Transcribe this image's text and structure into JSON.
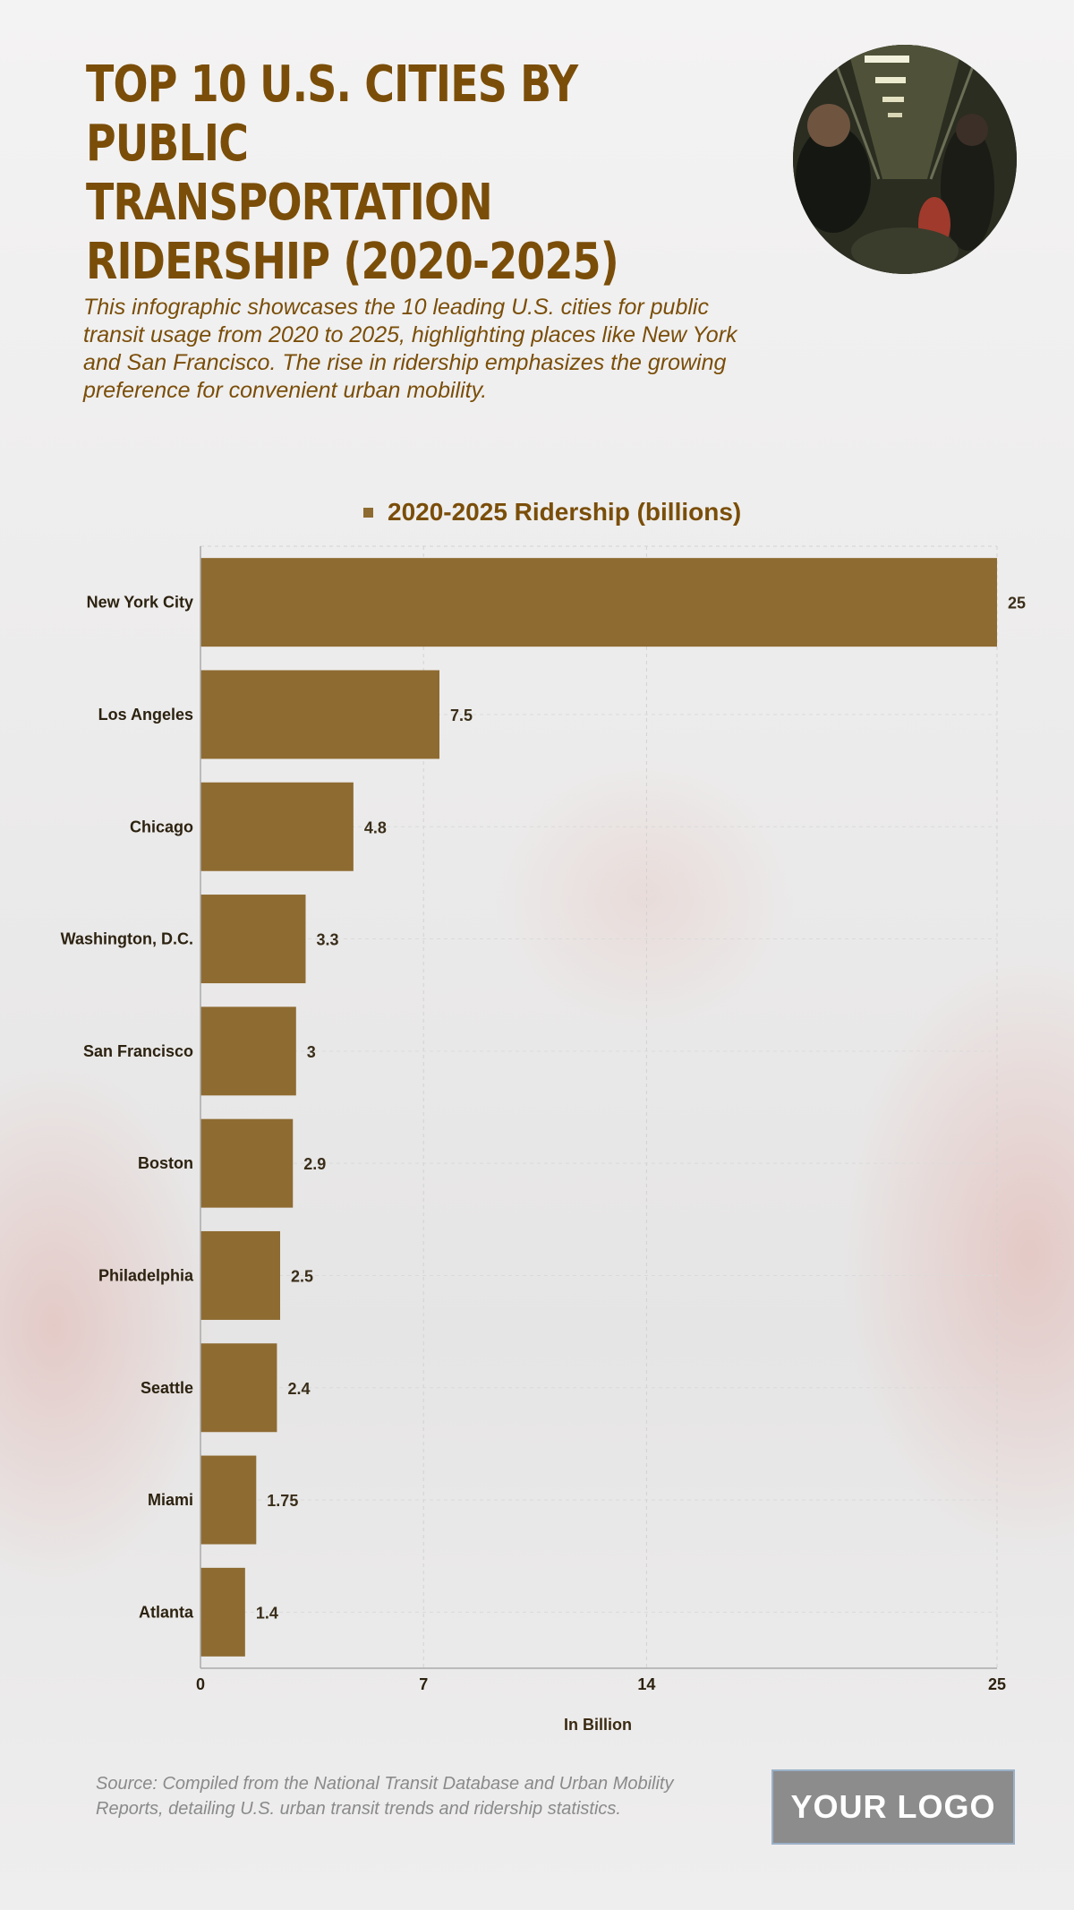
{
  "header": {
    "title": "TOP 10 U.S. CITIES BY PUBLIC TRANSPORTATION RIDERSHIP (2020-2025)",
    "subtitle": "This infographic showcases the 10 leading U.S. cities for public transit usage from 2020 to 2025, highlighting places like New York and San Francisco. The rise in ridership emphasizes the growing preference for convenient urban mobility."
  },
  "chart_data": {
    "type": "bar",
    "orientation": "horizontal",
    "categories": [
      "New York City",
      "Los Angeles",
      "Chicago",
      "Washington, D.C.",
      "San Francisco",
      "Boston",
      "Philadelphia",
      "Seattle",
      "Miami",
      "Atlanta"
    ],
    "series": [
      {
        "name": "2020-2025 Ridership (billions)",
        "values": [
          25,
          7.5,
          4.8,
          3.3,
          3,
          2.9,
          2.5,
          2.4,
          1.75,
          1.4
        ]
      }
    ],
    "value_labels": [
      "25",
      "7.5",
      "4.8",
      "3.3",
      "3",
      "2.9",
      "2.5",
      "2.4",
      "1.75",
      "1.4"
    ],
    "x_ticks": [
      0,
      7,
      14,
      25
    ],
    "x_tick_labels": [
      "0",
      "7",
      "14",
      "25"
    ],
    "xlim": [
      0,
      25
    ],
    "xlabel": "In Billion",
    "ylabel": "",
    "grid": true,
    "legend_position": "top-center",
    "bar_color": "#8e6b31"
  },
  "footer": {
    "source": "Source: Compiled from the National Transit Database and Urban Mobility Reports, detailing U.S. urban transit trends and ridership statistics.",
    "logo_text": "YOUR LOGO"
  }
}
